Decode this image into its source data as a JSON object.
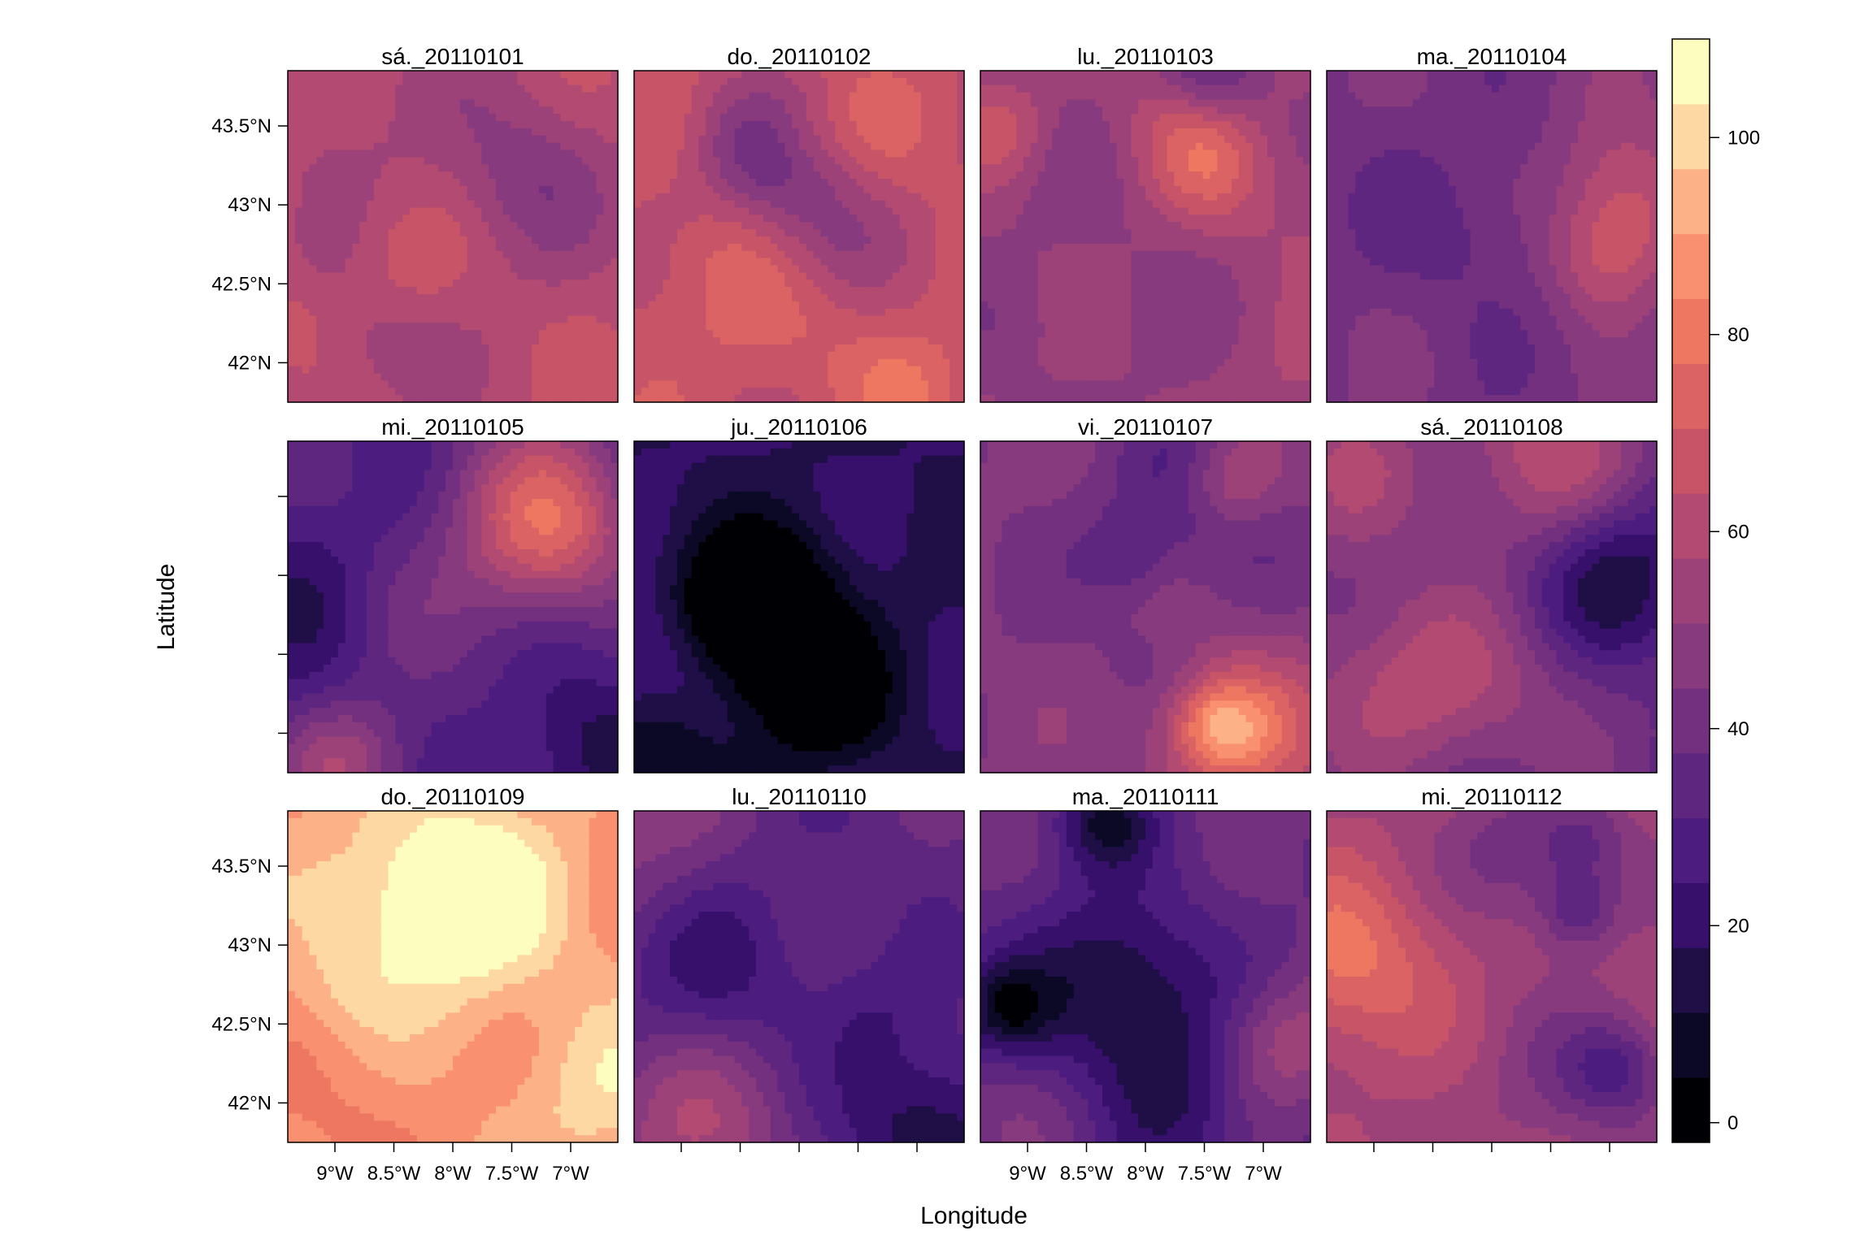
{
  "chart_data": {
    "type": "heatmap",
    "layout": {
      "rows": 3,
      "cols": 4
    },
    "xlabel": "Longitude",
    "ylabel": "Latitude",
    "x_ticks": [
      "9°W",
      "8.5°W",
      "8°W",
      "7.5°W",
      "7°W"
    ],
    "y_ticks": [
      "43.5°N",
      "43°N",
      "42.5°N",
      "42°N"
    ],
    "xlim": [
      -9.4,
      -6.6
    ],
    "ylim": [
      41.75,
      43.85
    ],
    "colorbar": {
      "range": [
        -2,
        110
      ],
      "ticks": [
        "0",
        "20",
        "40",
        "60",
        "80",
        "100"
      ],
      "levels": 16,
      "palette": [
        "#000004",
        "#0c0926",
        "#1f0f46",
        "#36106b",
        "#4c1d7e",
        "#5f2680",
        "#73307e",
        "#873a7d",
        "#9c4279",
        "#b24a72",
        "#c75467",
        "#db6363",
        "#ed7761",
        "#f99070",
        "#fdb187",
        "#fed8a3",
        "#fcfdbf"
      ]
    },
    "panels": [
      {
        "label": "sá._20110101",
        "mean_value": 62
      },
      {
        "label": "do._20110102",
        "mean_value": 65
      },
      {
        "label": "lu._20110103",
        "mean_value": 50
      },
      {
        "label": "ma._20110104",
        "mean_value": 42
      },
      {
        "label": "mi._20110105",
        "mean_value": 32
      },
      {
        "label": "ju._20110106",
        "mean_value": 18
      },
      {
        "label": "vi._20110107",
        "mean_value": 45
      },
      {
        "label": "sá._20110108",
        "mean_value": 38
      },
      {
        "label": "do._20110109",
        "mean_value": 88
      },
      {
        "label": "lu._20110110",
        "mean_value": 35
      },
      {
        "label": "ma._20110111",
        "mean_value": 38
      },
      {
        "label": "mi._20110112",
        "mean_value": 55
      }
    ]
  }
}
